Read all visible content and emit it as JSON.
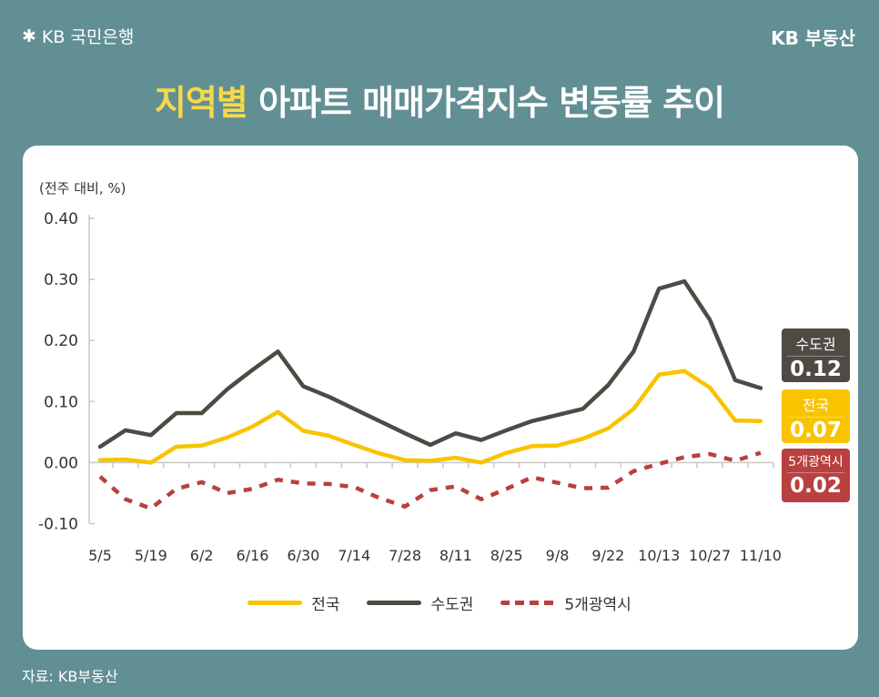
{
  "header": {
    "bank_logo": "KB 국민은행",
    "brand": "KB 부동산",
    "title_highlight": "지역별",
    "title_rest": " 아파트 매매가격지수 변동률 추이"
  },
  "source": "자료: KB부동산",
  "colors": {
    "background": "#628f94",
    "national": "#f8c400",
    "capital": "#4f4a43",
    "metro5": "#b8403e",
    "title_highlight": "#f6d94a"
  },
  "chart_data": {
    "type": "line",
    "title": "지역별 아파트 매매가격지수 변동률 추이",
    "ylabel": "(전주 대비, %)",
    "xlabel": "",
    "ylim": [
      -0.1,
      0.4
    ],
    "yticks": [
      "0.40",
      "0.30",
      "0.20",
      "0.10",
      "0.00",
      "-0.10"
    ],
    "grid": false,
    "legend_position": "bottom",
    "x": [
      "5/5",
      "5/12",
      "5/19",
      "5/26",
      "6/2",
      "6/9",
      "6/16",
      "6/23",
      "6/30",
      "7/7",
      "7/14",
      "7/21",
      "7/28",
      "8/4",
      "8/11",
      "8/18",
      "8/25",
      "9/1",
      "9/8",
      "9/15",
      "9/22",
      "9/29",
      "10/13",
      "10/20",
      "10/27",
      "11/3",
      "11/10"
    ],
    "xtick_labels": [
      "5/5",
      "5/19",
      "6/2",
      "6/16",
      "6/30",
      "7/14",
      "7/28",
      "8/11",
      "8/25",
      "9/8",
      "9/22",
      "10/13",
      "10/27",
      "11/10"
    ],
    "series": [
      {
        "name": "전국",
        "style": "solid",
        "values": [
          0.004,
          0.005,
          0.0,
          0.026,
          0.028,
          0.041,
          0.059,
          0.083,
          0.052,
          0.044,
          0.029,
          0.015,
          0.004,
          0.003,
          0.008,
          0.0,
          0.016,
          0.027,
          0.028,
          0.039,
          0.056,
          0.088,
          0.144,
          0.15,
          0.123,
          0.069,
          0.068
        ]
      },
      {
        "name": "수도권",
        "style": "solid",
        "values": [
          0.026,
          0.053,
          0.045,
          0.081,
          0.081,
          0.12,
          0.152,
          0.182,
          0.125,
          0.108,
          0.088,
          0.068,
          0.048,
          0.029,
          0.048,
          0.037,
          0.053,
          0.068,
          0.078,
          0.088,
          0.127,
          0.182,
          0.285,
          0.297,
          0.234,
          0.135,
          0.122
        ]
      },
      {
        "name": "5개광역시",
        "style": "dashed",
        "values": [
          -0.023,
          -0.06,
          -0.075,
          -0.043,
          -0.032,
          -0.05,
          -0.043,
          -0.028,
          -0.034,
          -0.035,
          -0.04,
          -0.058,
          -0.072,
          -0.045,
          -0.039,
          -0.06,
          -0.043,
          -0.024,
          -0.033,
          -0.042,
          -0.041,
          -0.014,
          -0.002,
          0.009,
          0.014,
          0.003,
          0.016
        ]
      }
    ],
    "end_labels": [
      {
        "name": "수도권",
        "value": "0.12"
      },
      {
        "name": "전국",
        "value": "0.07"
      },
      {
        "name": "5개광역시",
        "value": "0.02"
      }
    ]
  }
}
